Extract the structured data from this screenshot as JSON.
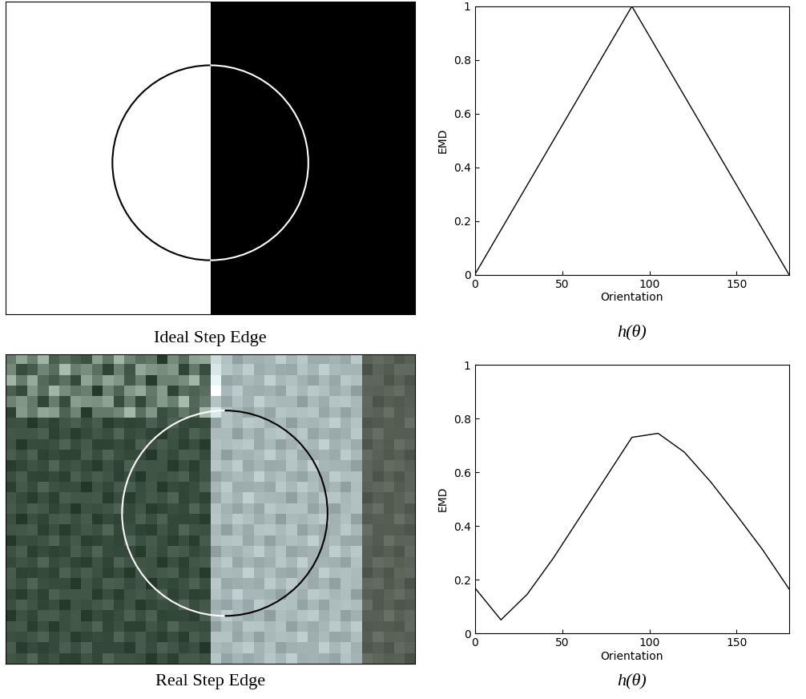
{
  "panels": [
    {
      "caption": "Ideal Step Edge"
    },
    {
      "caption": "Real Step Edge"
    }
  ],
  "chart_data": [
    {
      "type": "line",
      "caption": "h(θ)",
      "x_label": "Orientation",
      "y_label": "EMD",
      "x": [
        0,
        90,
        180
      ],
      "values": [
        0,
        1,
        0
      ],
      "color": "#000000",
      "xlim": [
        0,
        180
      ],
      "xticks": [
        0,
        50,
        100,
        150
      ],
      "ylim": [
        0,
        1
      ],
      "yticks": [
        0,
        0.2,
        0.4,
        0.6,
        0.8,
        1
      ]
    },
    {
      "type": "line",
      "caption": "h(θ)",
      "x_label": "Orientation",
      "y_label": "EMD",
      "x": [
        0,
        15,
        30,
        45,
        60,
        75,
        90,
        105,
        120,
        135,
        150,
        165,
        180
      ],
      "values": [
        0.17,
        0.05,
        0.145,
        0.28,
        0.43,
        0.58,
        0.73,
        0.745,
        0.675,
        0.565,
        0.44,
        0.31,
        0.165
      ],
      "color": "#000000",
      "xlim": [
        0,
        180
      ],
      "xticks": [
        0,
        50,
        100,
        150
      ],
      "ylim": [
        0,
        1
      ],
      "yticks": [
        0,
        0.2,
        0.4,
        0.6,
        0.8,
        1
      ]
    }
  ]
}
